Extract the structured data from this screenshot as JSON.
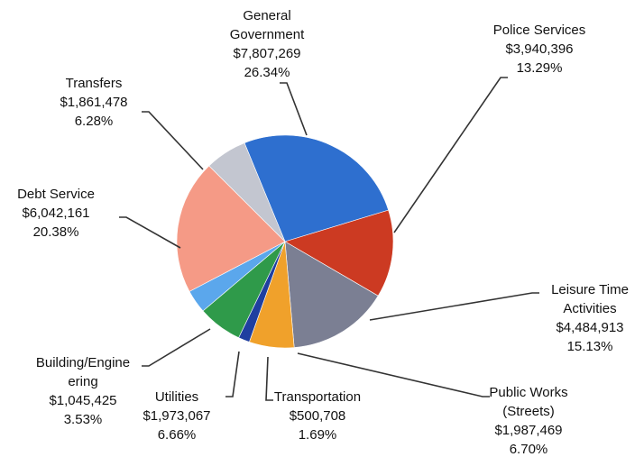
{
  "chart_data": {
    "type": "pie",
    "title": "",
    "start_angle_deg": 338,
    "slices": [
      {
        "name": "General Government",
        "label_lines": [
          "General",
          "Government"
        ],
        "value": 7807269,
        "value_text": "$7,807,269",
        "percent_text": "26.34%",
        "percent": 26.34,
        "color": "#2e6fcf"
      },
      {
        "name": "Police Services",
        "label_lines": [
          "Police Services"
        ],
        "value": 3940396,
        "value_text": "$3,940,396",
        "percent_text": "13.29%",
        "percent": 13.29,
        "color": "#cc3a22"
      },
      {
        "name": "Leisure Time Activities",
        "label_lines": [
          "Leisure Time",
          "Activities"
        ],
        "value": 4484913,
        "value_text": "$4,484,913",
        "percent_text": "15.13%",
        "percent": 15.13,
        "color": "#7b7f93"
      },
      {
        "name": "Public Works (Streets)",
        "label_lines": [
          "Public Works",
          "(Streets)"
        ],
        "value": 1987469,
        "value_text": "$1,987,469",
        "percent_text": "6.70%",
        "percent": 6.7,
        "color": "#f0a12b"
      },
      {
        "name": "Transportation",
        "label_lines": [
          "Transportation"
        ],
        "value": 500708,
        "value_text": "$500,708",
        "percent_text": "1.69%",
        "percent": 1.69,
        "color": "#1f3fa0"
      },
      {
        "name": "Utilities",
        "label_lines": [
          "Utilities"
        ],
        "value": 1973067,
        "value_text": "$1,973,067",
        "percent_text": "6.66%",
        "percent": 6.66,
        "color": "#2f9a4a"
      },
      {
        "name": "Building/Engineering",
        "label_lines": [
          "Building/Engine",
          "ering"
        ],
        "value": 1045425,
        "value_text": "$1,045,425",
        "percent_text": "3.53%",
        "percent": 3.53,
        "color": "#5ba7ec"
      },
      {
        "name": "Debt Service",
        "label_lines": [
          "Debt Service"
        ],
        "value": 6042161,
        "value_text": "$6,042,161",
        "percent_text": "20.38%",
        "percent": 20.38,
        "color": "#f59a86"
      },
      {
        "name": "Transfers",
        "label_lines": [
          "Transfers"
        ],
        "value": 1861478,
        "value_text": "$1,861,478",
        "percent_text": "6.28%",
        "percent": 6.28,
        "color": "#c3c6d0"
      }
    ]
  }
}
